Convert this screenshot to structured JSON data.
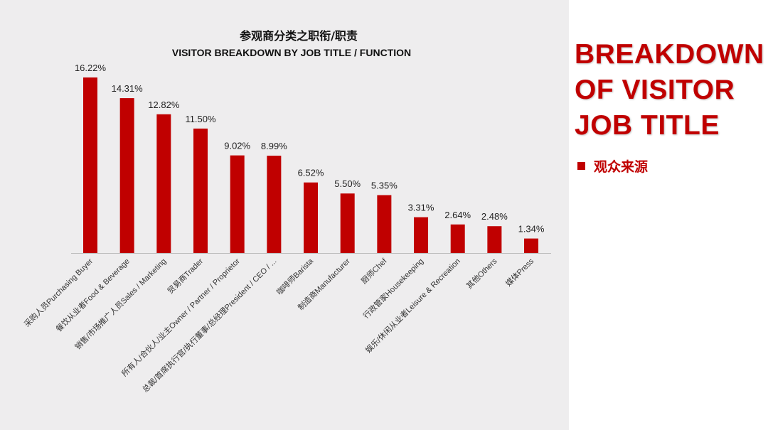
{
  "chart_data": {
    "type": "bar",
    "title": "参观商分类之职衔/职责",
    "subtitle": "VISITOR BREAKDOWN BY JOB TITLE / FUNCTION",
    "categories": [
      "采购人员Purchasing Buyer",
      "餐饮从业者Food & Beverage",
      "销售/市场推广人员Sales / Marketing",
      "贸易商Trader",
      "所有人/合伙人/业主Owner / Partner / Proprietor",
      "总裁/首席执行官/执行董事/总经理President / CEO / ...",
      "咖啡师Barista",
      "制造商Manufacturer",
      "厨师Chef",
      "行政管家Housekeeping",
      "娱乐/休闲从业者Leisure & Recreation",
      "其他Others",
      "媒体Press"
    ],
    "values": [
      16.22,
      14.31,
      12.82,
      11.5,
      9.02,
      8.99,
      6.52,
      5.5,
      5.35,
      3.31,
      2.64,
      2.48,
      1.34
    ],
    "data_labels": [
      "16.22%",
      "14.31%",
      "12.82%",
      "11.50%",
      "9.02%",
      "8.99%",
      "6.52%",
      "5.50%",
      "5.35%",
      "3.31%",
      "2.64%",
      "2.48%",
      "1.34%"
    ],
    "unit": "%",
    "ylim": [
      0,
      16.5
    ],
    "grid": false,
    "bar_color": "#c00000"
  },
  "side": {
    "title_lines": [
      "BREAKDOWN",
      "OF VISITOR",
      "JOB TITLE"
    ],
    "bullet": "观众来源",
    "accent": "#c00000"
  }
}
